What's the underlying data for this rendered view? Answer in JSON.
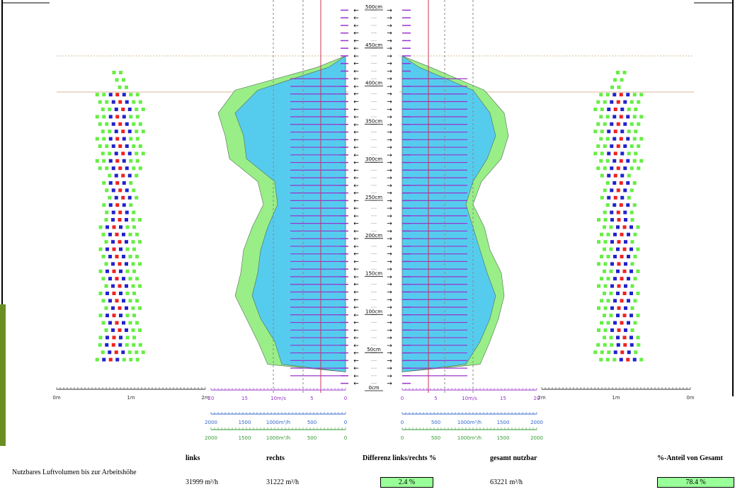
{
  "chart_data": {
    "type": "area",
    "height_labels": [
      "500cm",
      "450cm",
      "400cm",
      "350cm",
      "300cm",
      "250cm",
      "200cm",
      "150cm",
      "100cm",
      "50cm",
      "0cm"
    ],
    "height_values_cm": [
      500,
      450,
      400,
      350,
      300,
      250,
      200,
      150,
      100,
      50,
      0
    ],
    "outer_left_scale": [
      "0m",
      "1m",
      "2m"
    ],
    "outer_right_scale": [
      "2m",
      "1m",
      "0m"
    ],
    "velocity_scale_left": [
      "20",
      "15",
      "10m/s",
      "5",
      "0"
    ],
    "velocity_scale_right": [
      "0",
      "5",
      "10m/s",
      "15",
      "20"
    ],
    "flow_scale_left_blue": [
      "2000",
      "1500",
      "1000m³/h",
      "500",
      "0"
    ],
    "flow_scale_right_blue": [
      "0",
      "500",
      "1000m³/h",
      "1500",
      "2000"
    ],
    "flow_scale_left_green": [
      "2000",
      "1500",
      "1000m³/h",
      "500",
      "0"
    ],
    "flow_scale_right_green": [
      "0",
      "500",
      "1000m³/h",
      "1500",
      "2000"
    ],
    "profile_heights_cm": [
      30,
      60,
      90,
      120,
      150,
      180,
      210,
      240,
      270,
      300,
      330,
      360,
      390,
      420
    ],
    "series": [
      {
        "color": "#99ee88",
        "side": "left",
        "widths": [
          0.55,
          0.62,
          0.7,
          0.78,
          0.74,
          0.72,
          0.66,
          0.58,
          0.62,
          0.82,
          0.85,
          0.9,
          0.78,
          0.2
        ]
      },
      {
        "color": "#55ccee",
        "side": "left",
        "widths": [
          0.45,
          0.5,
          0.6,
          0.66,
          0.62,
          0.6,
          0.55,
          0.48,
          0.5,
          0.7,
          0.72,
          0.78,
          0.62,
          0.12
        ]
      },
      {
        "color": "#99ee88",
        "side": "right",
        "widths": [
          0.55,
          0.62,
          0.68,
          0.72,
          0.7,
          0.62,
          0.58,
          0.5,
          0.56,
          0.7,
          0.75,
          0.72,
          0.58,
          0.2
        ]
      },
      {
        "color": "#55ccee",
        "side": "right",
        "widths": [
          0.45,
          0.55,
          0.62,
          0.66,
          0.6,
          0.55,
          0.5,
          0.45,
          0.5,
          0.6,
          0.66,
          0.62,
          0.5,
          0.12
        ]
      }
    ]
  },
  "table": {
    "row_label": "Nutzbares Luftvolumen bis zur Arbeitshöhe",
    "headers": {
      "links": "links",
      "rechts": "rechts",
      "diff": "Differenz links/rechts %",
      "gesamt": "gesamt nutzbar",
      "anteil": "%-Anteil von Gesamt"
    },
    "values": {
      "links": "31999 m³/h",
      "rechts": "31222 m³/h",
      "diff": "2.4 %",
      "gesamt": "63221 m³/h",
      "anteil": "78.4 %"
    }
  },
  "colors": {
    "green_fill": "#99ff99",
    "blue_fill": "#55ccee",
    "purple": "#9933cc",
    "red": "#cc3355",
    "frame_green": "#6b8e23"
  }
}
